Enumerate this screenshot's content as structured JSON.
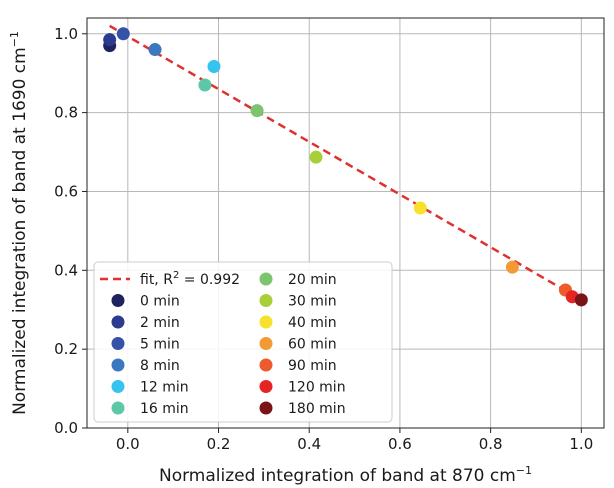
{
  "chart_data": {
    "type": "scatter",
    "xlabel": "Normalized integration of band at 870 cm",
    "xlabel_sup": "−1",
    "ylabel": "Normalized integration of band at 1690 cm",
    "ylabel_sup": "−1",
    "xlim": [
      -0.09,
      1.05
    ],
    "ylim": [
      0.0,
      1.04
    ],
    "xticks": [
      0.0,
      0.2,
      0.4,
      0.6,
      0.8,
      1.0
    ],
    "xtick_labels": [
      "0.0",
      "0.2",
      "0.4",
      "0.6",
      "0.8",
      "1.0"
    ],
    "yticks": [
      0.0,
      0.2,
      0.4,
      0.6,
      0.8,
      1.0
    ],
    "ytick_labels": [
      "0.0",
      "0.2",
      "0.4",
      "0.6",
      "0.8",
      "1.0"
    ],
    "grid": true,
    "legend_position": "lower-left",
    "fit": {
      "label": "fit, R",
      "label_sup": "2",
      "label_tail": " = 0.992",
      "x": [
        -0.04,
        1.0
      ],
      "y": [
        1.02,
        0.325
      ],
      "color": "#e03030",
      "style": "dashed"
    },
    "series": [
      {
        "name": "0 min",
        "color": "#1f2460",
        "points": [
          [
            -0.04,
            0.97
          ]
        ]
      },
      {
        "name": "2 min",
        "color": "#2b3b8f",
        "points": [
          [
            -0.04,
            0.985
          ]
        ]
      },
      {
        "name": "5 min",
        "color": "#3352a8",
        "points": [
          [
            -0.01,
            1.0
          ]
        ]
      },
      {
        "name": "8 min",
        "color": "#3a78c0",
        "points": [
          [
            0.06,
            0.96
          ]
        ]
      },
      {
        "name": "12 min",
        "color": "#35c3ef",
        "points": [
          [
            0.19,
            0.917
          ]
        ]
      },
      {
        "name": "16 min",
        "color": "#5ec7a8",
        "points": [
          [
            0.17,
            0.87
          ]
        ]
      },
      {
        "name": "20 min",
        "color": "#7cc46e",
        "points": [
          [
            0.285,
            0.805
          ]
        ]
      },
      {
        "name": "30 min",
        "color": "#a8cf3a",
        "points": [
          [
            0.415,
            0.687
          ]
        ]
      },
      {
        "name": "40 min",
        "color": "#f7e12c",
        "points": [
          [
            0.645,
            0.558
          ]
        ]
      },
      {
        "name": "60 min",
        "color": "#f39a35",
        "points": [
          [
            0.848,
            0.408
          ]
        ]
      },
      {
        "name": "90 min",
        "color": "#ee5a2c",
        "points": [
          [
            0.965,
            0.35
          ]
        ]
      },
      {
        "name": "120 min",
        "color": "#e52424",
        "points": [
          [
            0.98,
            0.333
          ]
        ]
      },
      {
        "name": "180 min",
        "color": "#7a1418",
        "points": [
          [
            1.0,
            0.325
          ]
        ]
      }
    ]
  }
}
